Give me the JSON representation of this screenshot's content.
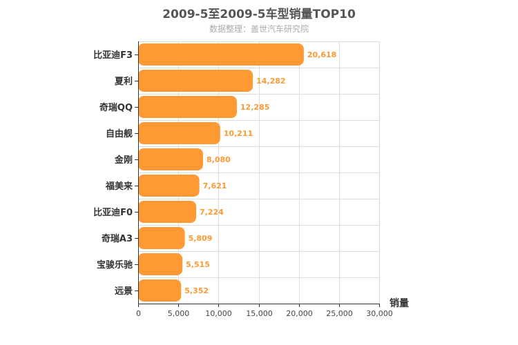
{
  "chart_data": {
    "type": "bar",
    "orientation": "horizontal",
    "title": "2009-5至2009-5车型销量TOP10",
    "subtitle": "数据整理：盖世汽车研究院",
    "categories": [
      "比亚迪F3",
      "夏利",
      "奇瑞QQ",
      "自由舰",
      "金刚",
      "福美来",
      "比亚迪F0",
      "奇瑞A3",
      "宝骏乐驰",
      "远景"
    ],
    "values": [
      20618,
      14282,
      12285,
      10211,
      8080,
      7621,
      7224,
      5809,
      5515,
      5352
    ],
    "value_labels": [
      "20,618",
      "14,282",
      "12,285",
      "10,211",
      "8,080",
      "7,621",
      "7,224",
      "5,809",
      "5,515",
      "5,352"
    ],
    "ticks": [
      0,
      5000,
      10000,
      15000,
      20000,
      25000,
      30000
    ],
    "tick_labels": [
      "0",
      "5,000",
      "10,000",
      "15,000",
      "20,000",
      "25,000",
      "30,000"
    ],
    "xlim": [
      0,
      30000
    ],
    "xlabel": "销量",
    "ylabel": "",
    "grid": true,
    "colors": {
      "bar": "#ff9933",
      "value_label": "#ff9933",
      "grid": "#dddddd",
      "axis": "#333333"
    }
  }
}
